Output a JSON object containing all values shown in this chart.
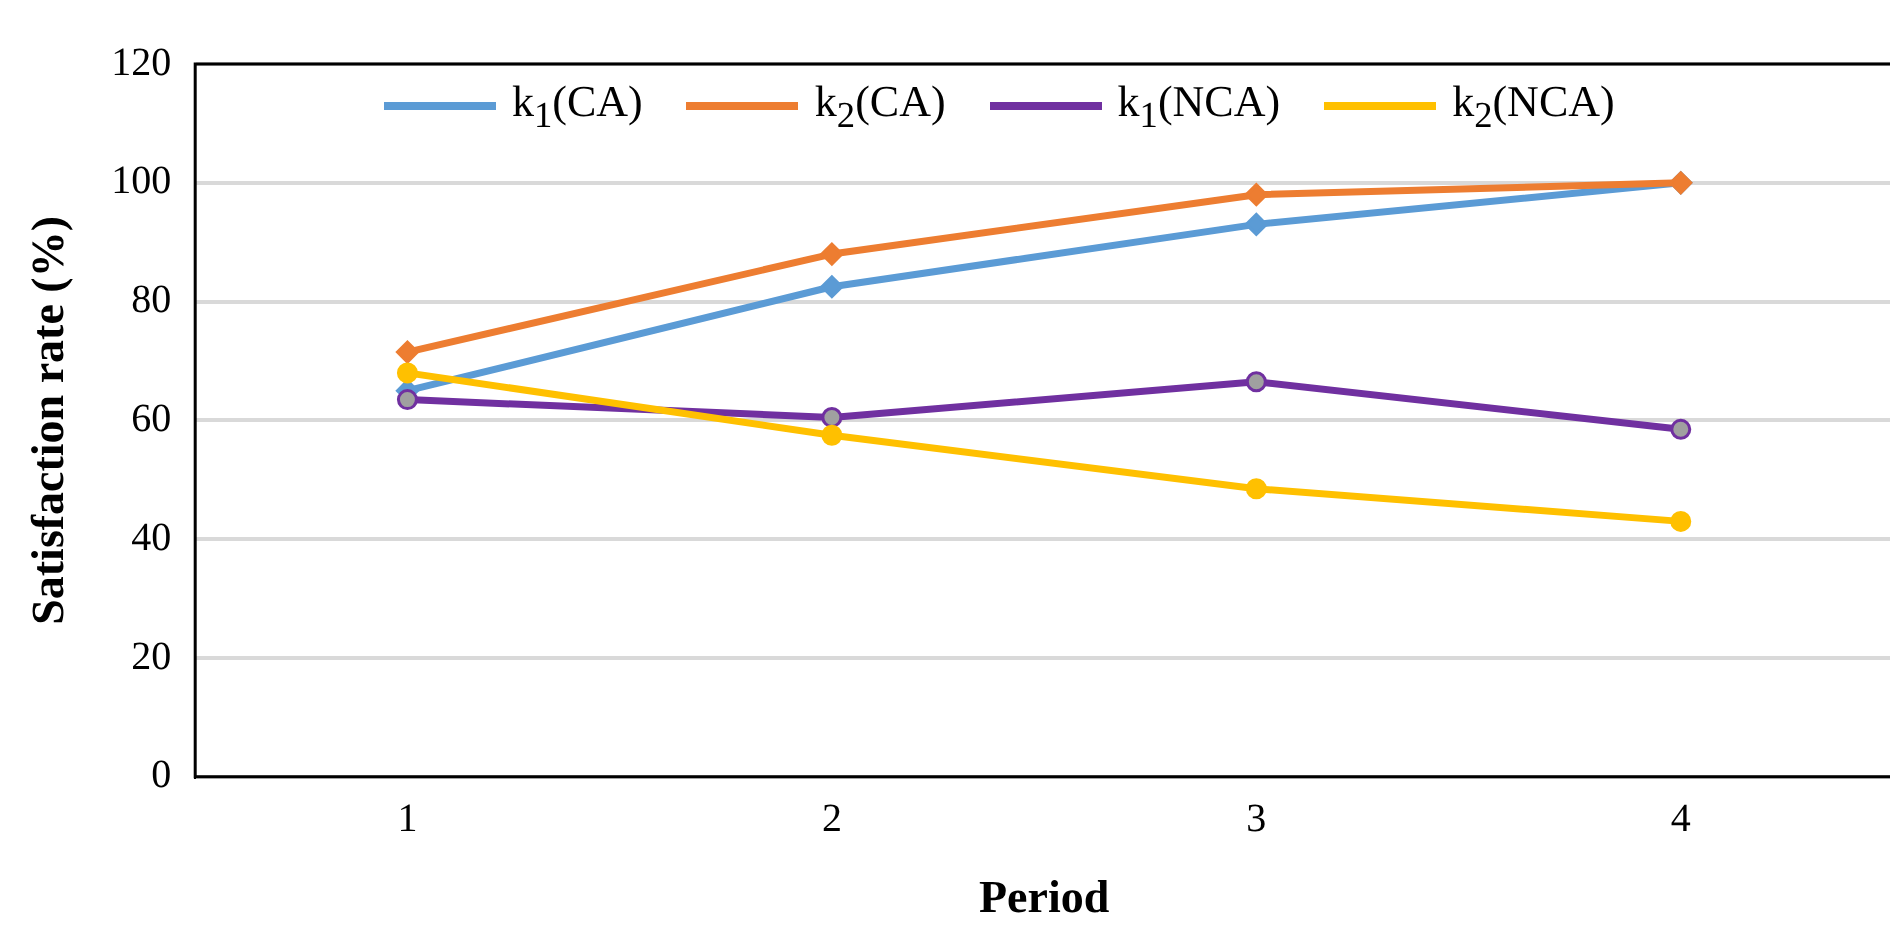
{
  "chart_data": {
    "type": "line",
    "xlabel": "Period",
    "ylabel": "Satisfaction rate (%)",
    "categories": [
      "1",
      "2",
      "3",
      "4"
    ],
    "series": [
      {
        "name": "k$_{1}$(CA)",
        "color": "#5b9bd5",
        "marker": "diamond",
        "values": [
          65,
          82.5,
          93,
          100
        ]
      },
      {
        "name": "k$_{2}$(CA)",
        "color": "#ed7d31",
        "marker": "diamond",
        "values": [
          71.5,
          88,
          98,
          100
        ]
      },
      {
        "name": "k$_{1}$(NCA)",
        "color": "#7030a0",
        "marker": "circle",
        "values": [
          63.5,
          60.5,
          66.5,
          58.5
        ]
      },
      {
        "name": "k$_{2}$(NCA)",
        "color": "#ffc000",
        "marker": "circle",
        "values": [
          68,
          57.5,
          48.5,
          43
        ]
      }
    ],
    "ylim": [
      0,
      120
    ],
    "yticks": [
      0,
      20,
      40,
      60,
      80,
      100,
      120
    ],
    "grid": "y",
    "legend": "top",
    "line_style": "solid"
  }
}
